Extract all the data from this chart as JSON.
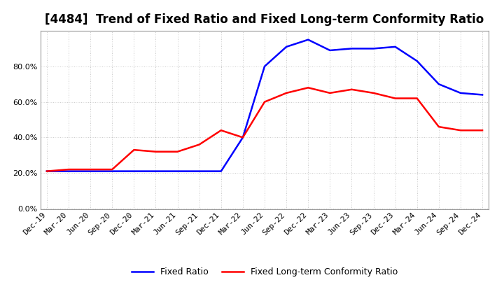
{
  "title": "[4484]  Trend of Fixed Ratio and Fixed Long-term Conformity Ratio",
  "labels": [
    "Dec-19",
    "Mar-20",
    "Jun-20",
    "Sep-20",
    "Dec-20",
    "Mar-21",
    "Jun-21",
    "Sep-21",
    "Dec-21",
    "Mar-22",
    "Jun-22",
    "Sep-22",
    "Dec-22",
    "Mar-23",
    "Jun-23",
    "Sep-23",
    "Dec-23",
    "Mar-24",
    "Jun-24",
    "Sep-24",
    "Dec-24"
  ],
  "fixed_ratio": [
    0.21,
    0.21,
    0.21,
    0.21,
    0.21,
    0.21,
    0.21,
    0.21,
    0.21,
    0.4,
    0.8,
    0.91,
    0.95,
    0.89,
    0.9,
    0.9,
    0.91,
    0.83,
    0.7,
    0.65,
    0.64
  ],
  "fixed_lt_ratio": [
    0.21,
    0.22,
    0.22,
    0.22,
    0.33,
    0.32,
    0.32,
    0.36,
    0.44,
    0.4,
    0.6,
    0.65,
    0.68,
    0.65,
    0.67,
    0.65,
    0.62,
    0.62,
    0.46,
    0.44,
    0.44
  ],
  "fixed_ratio_color": "#0000FF",
  "fixed_lt_ratio_color": "#FF0000",
  "ylim_min": 0.0,
  "ylim_max": 1.0,
  "yticks": [
    0.0,
    0.2,
    0.4,
    0.6,
    0.8
  ],
  "background_color": "#FFFFFF",
  "plot_bg_color": "#FFFFFF",
  "grid_color": "#AAAAAA",
  "legend_fixed": "Fixed Ratio",
  "legend_fixed_lt": "Fixed Long-term Conformity Ratio",
  "title_fontsize": 12,
  "tick_fontsize": 8,
  "legend_fontsize": 9,
  "linewidth": 1.8
}
